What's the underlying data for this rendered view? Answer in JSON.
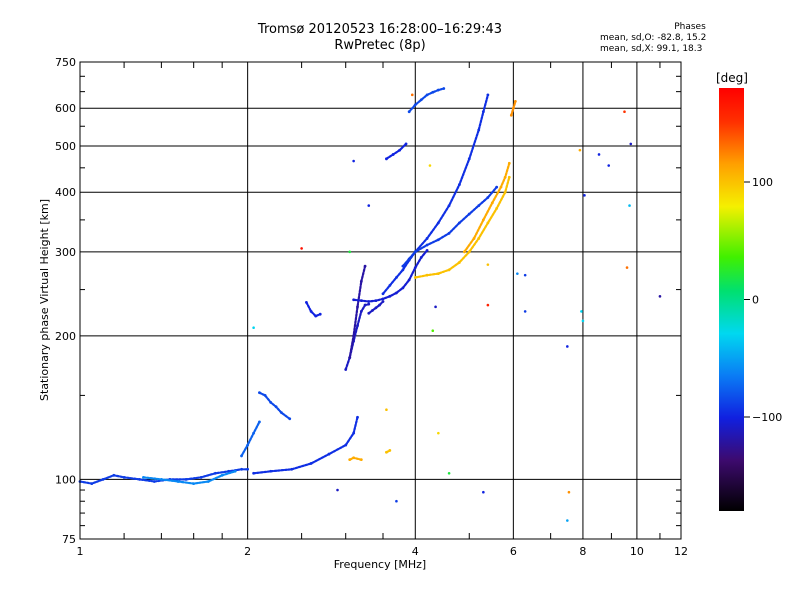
{
  "header": {
    "title": "Tromsø 20120523 16:28:00–16:29:43",
    "subtitle": "RwPretec (8p)"
  },
  "stats": {
    "heading": "Phases",
    "line_o": "mean, sd,O: -82.8, 15.2",
    "line_x": "mean, sd,X: 99.1, 18.3"
  },
  "colorbar": {
    "label": "[deg]",
    "ticks": [
      {
        "value": 100,
        "text": "100"
      },
      {
        "value": 0,
        "text": "0"
      },
      {
        "value": -100,
        "text": "−100"
      }
    ],
    "range": [
      -180,
      180
    ]
  },
  "chart_data": {
    "type": "scatter",
    "title": "Tromsø 20120523 16:28:00–16:29:43",
    "subtitle": "RwPretec (8p)",
    "xlabel": "Frequency [MHz]",
    "ylabel": "Stationary phase Virtual Height [km]",
    "xscale": "log",
    "yscale": "log",
    "xlim": [
      1,
      12
    ],
    "ylim": [
      75,
      750
    ],
    "grid": true,
    "xticks": [
      {
        "value": 1,
        "text": "1"
      },
      {
        "value": 2,
        "text": "2"
      },
      {
        "value": 4,
        "text": "4"
      },
      {
        "value": 6,
        "text": "6"
      },
      {
        "value": 8,
        "text": "8"
      },
      {
        "value": 10,
        "text": "10"
      },
      {
        "value": 12,
        "text": "12"
      }
    ],
    "yticks": [
      {
        "value": 75,
        "text": "75"
      },
      {
        "value": 100,
        "text": "100"
      },
      {
        "value": 200,
        "text": "200"
      },
      {
        "value": 300,
        "text": "300"
      },
      {
        "value": 400,
        "text": "400"
      },
      {
        "value": 500,
        "text": "500"
      },
      {
        "value": 600,
        "text": "600"
      },
      {
        "value": 750,
        "text": "750"
      }
    ],
    "color_metric": "phase [deg]",
    "traces": [
      {
        "phase": -90,
        "x": [
          1.0,
          1.05,
          1.1,
          1.15,
          1.2,
          1.28,
          1.36,
          1.45,
          1.55,
          1.65,
          1.75,
          1.85,
          1.95,
          2.0
        ],
        "y": [
          99,
          98,
          100,
          102,
          101,
          100,
          99,
          100,
          100,
          101,
          103,
          104,
          105,
          105
        ]
      },
      {
        "phase": -60,
        "x": [
          1.3,
          1.4,
          1.5,
          1.6,
          1.7,
          1.8,
          1.9
        ],
        "y": [
          101,
          100,
          99,
          98,
          99,
          102,
          104
        ]
      },
      {
        "phase": -95,
        "x": [
          2.05,
          2.2,
          2.4,
          2.6,
          2.8,
          3.0,
          3.1,
          3.15
        ],
        "y": [
          103,
          104,
          105,
          108,
          113,
          118,
          125,
          135
        ]
      },
      {
        "phase": -75,
        "x": [
          1.95,
          2.0,
          2.05,
          2.1
        ],
        "y": [
          112,
          118,
          125,
          132
        ]
      },
      {
        "phase": -85,
        "x": [
          2.1,
          2.15,
          2.2,
          2.25,
          2.3,
          2.38
        ],
        "y": [
          152,
          150,
          145,
          142,
          138,
          134
        ]
      },
      {
        "phase": -100,
        "x": [
          2.55,
          2.6,
          2.65,
          2.7
        ],
        "y": [
          235,
          225,
          220,
          222
        ]
      },
      {
        "phase": -110,
        "x": [
          3.0,
          3.05,
          3.1,
          3.15,
          3.2,
          3.25,
          3.3
        ],
        "y": [
          170,
          180,
          195,
          210,
          225,
          232,
          233
        ]
      },
      {
        "phase": -120,
        "x": [
          3.05,
          3.1,
          3.15,
          3.2,
          3.25
        ],
        "y": [
          180,
          200,
          230,
          260,
          280
        ]
      },
      {
        "phase": -105,
        "x": [
          3.1,
          3.2,
          3.3,
          3.4,
          3.5,
          3.6,
          3.7,
          3.8,
          3.9,
          4.0,
          4.1,
          4.2
        ],
        "y": [
          238,
          237,
          236,
          237,
          239,
          242,
          246,
          252,
          262,
          278,
          292,
          302
        ]
      },
      {
        "phase": -95,
        "x": [
          3.5,
          3.6,
          3.7,
          3.8,
          3.9,
          4.0,
          4.2,
          4.4,
          4.6,
          4.8,
          5.0,
          5.2,
          5.3,
          5.4
        ],
        "y": [
          245,
          255,
          265,
          275,
          288,
          300,
          320,
          345,
          375,
          415,
          470,
          540,
          590,
          640
        ]
      },
      {
        "phase": -90,
        "x": [
          3.8,
          3.9,
          4.0,
          4.2,
          4.4,
          4.6,
          4.8,
          5.0,
          5.2,
          5.4,
          5.6
        ],
        "y": [
          280,
          290,
          300,
          310,
          318,
          328,
          345,
          360,
          375,
          390,
          410
        ]
      },
      {
        "phase": -100,
        "x": [
          3.55,
          3.65,
          3.75,
          3.85
        ],
        "y": [
          470,
          480,
          490,
          505
        ]
      },
      {
        "phase": -85,
        "x": [
          3.9,
          4.0,
          4.1,
          4.2,
          4.3,
          4.4,
          4.5
        ],
        "y": [
          590,
          610,
          625,
          640,
          648,
          655,
          660
        ]
      },
      {
        "phase": -110,
        "x": [
          3.3,
          3.35,
          3.4,
          3.45,
          3.5
        ],
        "y": [
          223,
          226,
          229,
          232,
          236
        ]
      },
      {
        "phase": 100,
        "x": [
          4.0,
          4.2,
          4.4,
          4.6,
          4.8,
          5.0,
          5.2,
          5.4,
          5.6,
          5.8,
          5.9
        ],
        "y": [
          265,
          268,
          270,
          275,
          285,
          300,
          320,
          345,
          370,
          400,
          430
        ]
      },
      {
        "phase": 110,
        "x": [
          4.9,
          5.1,
          5.3,
          5.5,
          5.7,
          5.8,
          5.9
        ],
        "y": [
          300,
          320,
          350,
          380,
          410,
          430,
          460
        ]
      },
      {
        "phase": 110,
        "x": [
          3.05,
          3.1,
          3.2
        ],
        "y": [
          110,
          111,
          110
        ]
      },
      {
        "phase": 100,
        "x": [
          3.55,
          3.6
        ],
        "y": [
          114,
          115
        ]
      },
      {
        "phase": 120,
        "x": [
          5.95,
          6.0,
          6.05
        ],
        "y": [
          580,
          600,
          620
        ]
      }
    ],
    "scatter_points": [
      {
        "x": 2.05,
        "y": 208,
        "phase": -30
      },
      {
        "x": 2.5,
        "y": 305,
        "phase": 170
      },
      {
        "x": 3.1,
        "y": 465,
        "phase": -100
      },
      {
        "x": 3.05,
        "y": 300,
        "phase": 20
      },
      {
        "x": 2.9,
        "y": 95,
        "phase": -110
      },
      {
        "x": 3.7,
        "y": 90,
        "phase": -90
      },
      {
        "x": 3.3,
        "y": 375,
        "phase": -100
      },
      {
        "x": 4.25,
        "y": 455,
        "phase": 90
      },
      {
        "x": 4.3,
        "y": 205,
        "phase": 40
      },
      {
        "x": 4.4,
        "y": 125,
        "phase": 90
      },
      {
        "x": 4.6,
        "y": 103,
        "phase": 20
      },
      {
        "x": 5.3,
        "y": 94,
        "phase": -100
      },
      {
        "x": 5.4,
        "y": 232,
        "phase": 160
      },
      {
        "x": 5.4,
        "y": 282,
        "phase": 100
      },
      {
        "x": 6.1,
        "y": 270,
        "phase": -60
      },
      {
        "x": 6.3,
        "y": 268,
        "phase": -90
      },
      {
        "x": 6.3,
        "y": 225,
        "phase": -90
      },
      {
        "x": 7.5,
        "y": 190,
        "phase": -100
      },
      {
        "x": 7.5,
        "y": 82,
        "phase": -50
      },
      {
        "x": 7.55,
        "y": 94,
        "phase": 120
      },
      {
        "x": 7.95,
        "y": 225,
        "phase": -30
      },
      {
        "x": 8.0,
        "y": 215,
        "phase": -30
      },
      {
        "x": 8.05,
        "y": 394,
        "phase": -100
      },
      {
        "x": 7.9,
        "y": 490,
        "phase": 110
      },
      {
        "x": 8.55,
        "y": 480,
        "phase": -100
      },
      {
        "x": 8.9,
        "y": 455,
        "phase": -100
      },
      {
        "x": 9.5,
        "y": 590,
        "phase": 150
      },
      {
        "x": 9.6,
        "y": 278,
        "phase": 130
      },
      {
        "x": 9.75,
        "y": 505,
        "phase": -110
      },
      {
        "x": 9.7,
        "y": 375,
        "phase": -40
      },
      {
        "x": 11.0,
        "y": 242,
        "phase": -120
      },
      {
        "x": 3.95,
        "y": 640,
        "phase": 130
      },
      {
        "x": 4.35,
        "y": 230,
        "phase": -110
      },
      {
        "x": 3.55,
        "y": 140,
        "phase": 100
      }
    ]
  }
}
